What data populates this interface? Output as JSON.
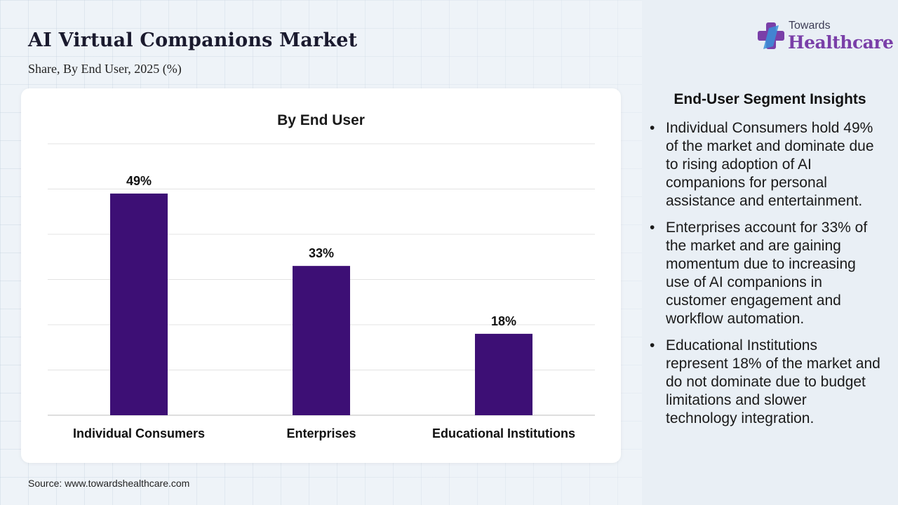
{
  "header": {
    "title": "AI Virtual Companions Market",
    "subtitle": "Share, By End User, 2025 (%)"
  },
  "logo": {
    "line1": "Towards",
    "line2": "Healthcare",
    "icon": "cross-plus-icon",
    "colors": {
      "purple": "#7a3fa8",
      "blue": "#3a8fd8"
    }
  },
  "chart_data": {
    "type": "bar",
    "title": "By End User",
    "categories": [
      "Individual Consumers",
      "Enterprises",
      "Educational Institutions"
    ],
    "values": [
      49,
      33,
      18
    ],
    "data_labels": [
      "49%",
      "33%",
      "18%"
    ],
    "unit": "%",
    "ylim": [
      0,
      60
    ],
    "grid": true,
    "bar_color": "#3d0f75"
  },
  "insights": {
    "title": "End-User Segment Insights",
    "items": [
      "Individual Consumers hold 49% of the market and dominate due to rising adoption of AI companions for personal assistance and entertainment.",
      "Enterprises account for 33% of the market and are gaining momentum due to increasing use of AI companions in customer engagement and workflow automation.",
      "Educational Institutions represent 18% of the market and do not dominate due to budget limitations and slower technology integration."
    ]
  },
  "footer": {
    "source": "Source: www.towardshealthcare.com"
  }
}
